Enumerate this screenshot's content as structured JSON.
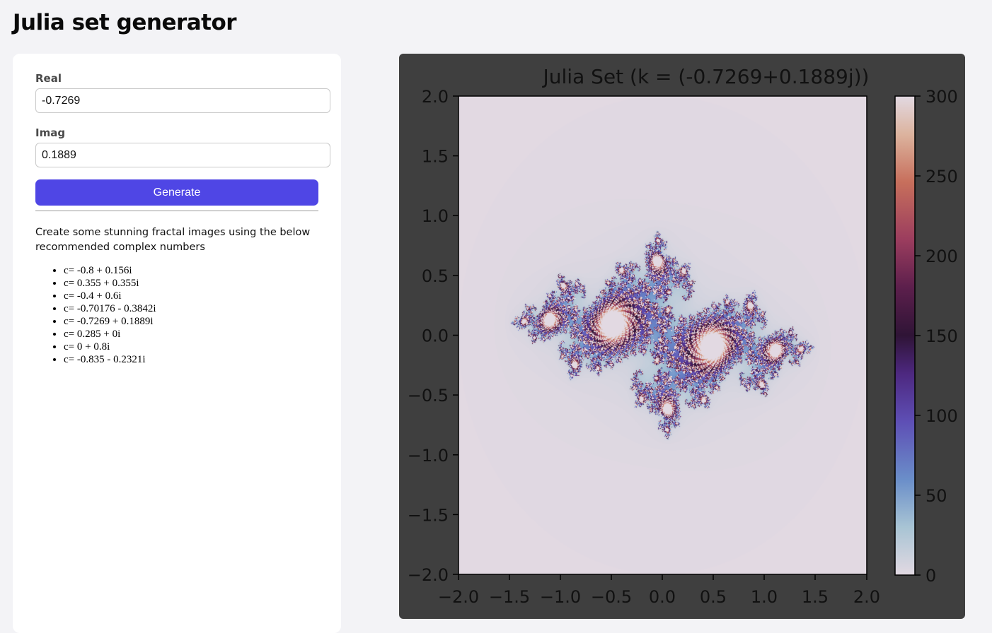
{
  "header": {
    "title": "Julia set generator"
  },
  "form": {
    "real_label": "Real",
    "real_value": "-0.7269",
    "imag_label": "Imag",
    "imag_value": "0.1889",
    "generate_label": "Generate"
  },
  "info": {
    "intro": "Create some stunning fractal images using the below recommended complex numbers",
    "suggestions": [
      "c= -0.8 + 0.156i",
      "c= 0.355 + 0.355i",
      "c= -0.4 + 0.6i",
      "c= -0.70176 - 0.3842i",
      "c= -0.7269 + 0.1889i",
      "c= 0.285 + 0i",
      "c= 0 + 0.8i",
      "c= -0.835 - 0.2321i"
    ]
  },
  "plot": {
    "title": "Julia Set (k = (-0.7269+0.1889j))",
    "c_real": -0.7269,
    "c_imag": 0.1889,
    "max_iter": 300,
    "xlim": [
      -2.0,
      2.0
    ],
    "ylim": [
      -2.0,
      2.0
    ],
    "x_ticks": [
      "−2.0",
      "−1.5",
      "−1.0",
      "−0.5",
      "0.0",
      "0.5",
      "1.0",
      "1.5",
      "2.0"
    ],
    "y_ticks": [
      "2.0",
      "1.5",
      "1.0",
      "0.5",
      "0.0",
      "−0.5",
      "−1.0",
      "−1.5",
      "−2.0"
    ],
    "colorbar_ticks": [
      "300",
      "250",
      "200",
      "150",
      "100",
      "50",
      "0"
    ],
    "colormap": "twilight",
    "background_color": "#3f3f3f"
  }
}
